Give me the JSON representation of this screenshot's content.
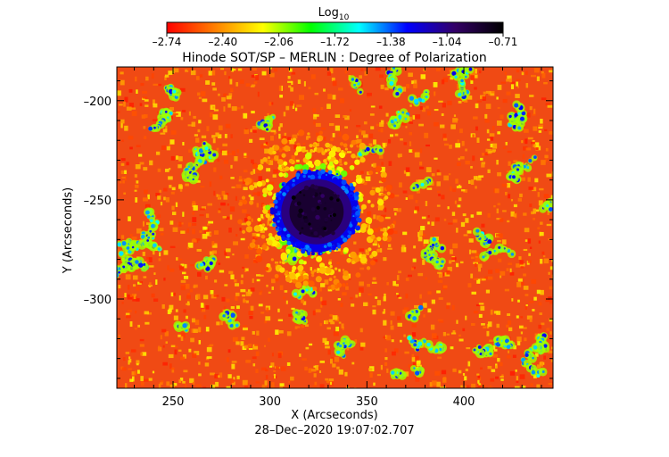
{
  "chart_data": {
    "type": "heatmap",
    "title": "Hinode SOT/SP – MERLIN : Degree of Polarization",
    "xlabel": "X (Arcseconds)",
    "ylabel": "Y (Arcseconds)",
    "xlim": [
      221,
      446
    ],
    "ylim": [
      -345,
      -183
    ],
    "x_ticks": [
      250,
      300,
      350,
      400
    ],
    "y_ticks": [
      -200,
      -250,
      -300
    ],
    "timestamp": "28–Dec–2020 19:07:02.707",
    "colorbar": {
      "title_base": "Log",
      "title_sub": "10",
      "range": [
        -2.74,
        -0.71
      ],
      "tick_labels": [
        "–2.74",
        "–2.40",
        "–2.06",
        "–1.72",
        "–1.38",
        "–1.04",
        "–0.71"
      ],
      "palette": [
        "#ff0000",
        "#ff7f00",
        "#ffff00",
        "#00ff00",
        "#00ffff",
        "#0000ff",
        "#330066",
        "#000000"
      ]
    },
    "features": [
      {
        "kind": "background",
        "value": -2.5
      },
      {
        "kind": "sunspot-umbra",
        "cx": 324,
        "cy": -256,
        "r": 14,
        "value": -0.85
      },
      {
        "kind": "sunspot-penumbra",
        "cx": 324,
        "cy": -256,
        "r": 22,
        "value": -1.25
      },
      {
        "kind": "network",
        "value": -1.6
      }
    ]
  }
}
